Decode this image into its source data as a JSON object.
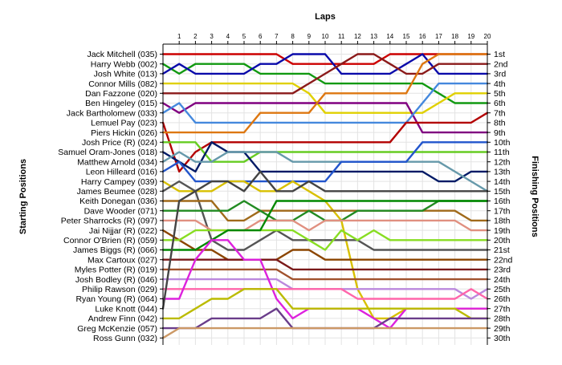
{
  "chart_data": {
    "type": "line",
    "x_title": "Laps",
    "y_left_title": "Starting Positions",
    "y_right_title": "Finishing Positions",
    "laps": [
      1,
      2,
      3,
      4,
      5,
      6,
      7,
      8,
      9,
      10,
      11,
      12,
      13,
      14,
      15,
      16,
      17,
      18,
      19,
      20
    ],
    "xlim": [
      0,
      20
    ],
    "grid": true,
    "starting_order": [
      "Jack Mitchell (035)",
      "Harry Webb (002)",
      "Josh White (013)",
      "Connor Mills (082)",
      "Dan Fazzone (020)",
      "Ben Hingeley (015)",
      "Jack Bartholomew (033)",
      "Lemuel Pay (023)",
      "Piers Hickin (026)",
      "Josh Price (R) (024)",
      "Samuel Oram-Jones (018)",
      "Matthew Arnold (034)",
      "Leon Hilleard (016)",
      "Harry Campey (039)",
      "James Beumee (028)",
      "Keith Donegan (036)",
      "Dave Wooder (071)",
      "Peter Sharrocks (R) (097)",
      "Jai Nijjar (R) (022)",
      "Connor O'Brien (R) (059)",
      "James Biggs (R) (066)",
      "Max Cartoux (027)",
      "Myles Potter (R) (019)",
      "Josh Bodley (R) (046)",
      "Philip Rawson (029)",
      "Ryan Young (R) (064)",
      "Luke Knott (044)",
      "Andrew Finn (042)",
      "Greg McKenzie (057)",
      "Ross Gunn (032)"
    ],
    "finishing_positions": [
      "1st",
      "2nd",
      "3rd",
      "4th",
      "5th",
      "6th",
      "7th",
      "8th",
      "9th",
      "10th",
      "11th",
      "12th",
      "13th",
      "14th",
      "15th",
      "16th",
      "17th",
      "18th",
      "19th",
      "20th",
      "21st",
      "22nd",
      "23rd",
      "24th",
      "25th",
      "26th",
      "27th",
      "28th",
      "29th",
      "30th"
    ],
    "series": [
      {
        "color": "#cc0000",
        "positions": [
          1,
          1,
          1,
          1,
          1,
          1,
          1,
          1,
          2,
          2,
          2,
          2,
          2,
          2,
          1,
          1,
          1,
          1,
          1,
          1,
          1
        ]
      },
      {
        "color": "#119911",
        "positions": [
          2,
          3,
          2,
          2,
          2,
          2,
          3,
          3,
          3,
          3,
          4,
          4,
          4,
          4,
          4,
          4,
          4,
          5,
          6,
          6,
          6
        ]
      },
      {
        "color": "#0a0aaa",
        "positions": [
          3,
          2,
          3,
          3,
          3,
          3,
          2,
          2,
          1,
          1,
          1,
          3,
          3,
          3,
          3,
          2,
          1,
          3,
          3,
          3,
          3
        ]
      },
      {
        "color": "#e0d000",
        "positions": [
          4,
          4,
          4,
          4,
          4,
          4,
          4,
          4,
          4,
          5,
          7,
          7,
          7,
          7,
          7,
          7,
          7,
          6,
          5,
          5,
          5
        ]
      },
      {
        "color": "#8b1a1a",
        "positions": [
          5,
          5,
          5,
          5,
          5,
          5,
          5,
          5,
          5,
          4,
          3,
          2,
          1,
          1,
          2,
          3,
          3,
          2,
          2,
          2,
          2
        ]
      },
      {
        "color": "#800080",
        "positions": [
          6,
          7,
          6,
          6,
          6,
          6,
          6,
          6,
          6,
          6,
          6,
          6,
          6,
          6,
          6,
          6,
          9,
          9,
          9,
          9,
          9
        ]
      },
      {
        "color": "#4488dd",
        "positions": [
          7,
          6,
          8,
          8,
          8,
          8,
          8,
          8,
          8,
          8,
          8,
          8,
          8,
          8,
          8,
          8,
          6,
          4,
          4,
          4,
          4
        ]
      },
      {
        "color": "#b30000",
        "positions": [
          8,
          13,
          11,
          10,
          10,
          10,
          10,
          10,
          10,
          10,
          10,
          10,
          10,
          10,
          10,
          8,
          8,
          8,
          8,
          8,
          7
        ]
      },
      {
        "color": "#dd7711",
        "positions": [
          9,
          9,
          9,
          9,
          9,
          9,
          7,
          7,
          7,
          7,
          5,
          5,
          5,
          5,
          5,
          5,
          2,
          1,
          1,
          1,
          1
        ]
      },
      {
        "color": "#66cc22",
        "positions": [
          10,
          10,
          10,
          12,
          12,
          12,
          11,
          11,
          11,
          11,
          11,
          11,
          11,
          11,
          11,
          11,
          11,
          11,
          11,
          11,
          11
        ]
      },
      {
        "color": "#001a66",
        "positions": [
          11,
          12,
          13,
          10,
          11,
          11,
          13,
          13,
          13,
          13,
          13,
          13,
          13,
          13,
          13,
          13,
          13,
          14,
          14,
          13,
          13
        ]
      },
      {
        "color": "#6699aa",
        "positions": [
          12,
          11,
          12,
          12,
          11,
          11,
          11,
          11,
          12,
          12,
          12,
          12,
          12,
          12,
          12,
          12,
          12,
          12,
          13,
          14,
          15
        ]
      },
      {
        "color": "#2255cc",
        "positions": [
          13,
          12,
          14,
          14,
          14,
          14,
          14,
          14,
          14,
          14,
          14,
          12,
          12,
          12,
          12,
          12,
          10,
          10,
          10,
          10,
          10
        ]
      },
      {
        "color": "#d8c000",
        "positions": [
          14,
          15,
          15,
          15,
          14,
          14,
          15,
          15,
          14,
          15,
          16,
          18,
          25,
          28,
          28,
          27,
          27,
          27,
          27,
          27,
          27
        ]
      },
      {
        "color": "#555555",
        "positions": [
          15,
          14,
          15,
          20,
          21,
          21,
          20,
          19,
          20,
          20,
          20,
          20,
          20,
          21,
          21,
          21,
          21,
          21,
          21,
          21,
          21
        ]
      },
      {
        "color": "#a06a1a",
        "positions": [
          16,
          16,
          16,
          16,
          18,
          18,
          17,
          17,
          17,
          17,
          17,
          17,
          17,
          17,
          17,
          17,
          17,
          17,
          17,
          18,
          18
        ]
      },
      {
        "color": "#228b22",
        "positions": [
          17,
          17,
          17,
          17,
          17,
          16,
          17,
          18,
          18,
          17,
          18,
          18,
          17,
          17,
          17,
          17,
          17,
          16,
          16,
          16,
          16
        ]
      },
      {
        "color": "#e09080",
        "positions": [
          18,
          18,
          18,
          19,
          19,
          19,
          18,
          18,
          18,
          19,
          18,
          18,
          18,
          18,
          18,
          18,
          18,
          18,
          18,
          19,
          19
        ]
      },
      {
        "color": "#8b4500",
        "positions": [
          19,
          20,
          21,
          21,
          22,
          22,
          22,
          22,
          21,
          21,
          22,
          22,
          22,
          22,
          22,
          22,
          22,
          22,
          22,
          22,
          22
        ]
      },
      {
        "color": "#88dd22",
        "positions": [
          20,
          20,
          19,
          19,
          19,
          19,
          19,
          19,
          19,
          20,
          21,
          19,
          20,
          19,
          20,
          20,
          20,
          20,
          20,
          20,
          20
        ]
      },
      {
        "color": "#008800",
        "positions": [
          21,
          21,
          21,
          20,
          19,
          19,
          19,
          16,
          16,
          16,
          16,
          16,
          16,
          16,
          16,
          16,
          16,
          16,
          16,
          16,
          16
        ]
      },
      {
        "color": "#7a1a1a",
        "positions": [
          22,
          22,
          22,
          22,
          22,
          22,
          22,
          22,
          23,
          23,
          23,
          23,
          23,
          23,
          23,
          23,
          23,
          23,
          23,
          23,
          23
        ]
      },
      {
        "color": "#a0522d",
        "positions": [
          23,
          23,
          23,
          23,
          23,
          23,
          23,
          23,
          24,
          24,
          24,
          24,
          24,
          24,
          24,
          24,
          24,
          24,
          24,
          24,
          24
        ]
      },
      {
        "color": "#bb88dd",
        "positions": [
          24,
          24,
          24,
          24,
          24,
          24,
          24,
          24,
          25,
          25,
          25,
          25,
          25,
          25,
          25,
          25,
          25,
          25,
          25,
          26,
          25
        ]
      },
      {
        "color": "#ff66aa",
        "positions": [
          25,
          25,
          25,
          25,
          25,
          25,
          25,
          25,
          25,
          25,
          25,
          25,
          26,
          26,
          26,
          26,
          26,
          26,
          26,
          25,
          26
        ]
      },
      {
        "color": "#dd22dd",
        "positions": [
          26,
          26,
          22,
          20,
          20,
          22,
          22,
          26,
          28,
          27,
          27,
          27,
          27,
          28,
          29,
          27,
          27,
          27,
          27,
          27,
          27
        ]
      },
      {
        "color": "#444444",
        "positions": [
          27,
          16,
          15,
          14,
          14,
          15,
          13,
          15,
          15,
          14,
          15,
          15,
          15,
          15,
          15,
          15,
          15,
          15,
          15,
          15,
          15
        ]
      },
      {
        "color": "#bbbb00",
        "positions": [
          28,
          28,
          27,
          26,
          26,
          25,
          25,
          25,
          27,
          27,
          27,
          27,
          27,
          27,
          27,
          27,
          27,
          27,
          27,
          28,
          28
        ]
      },
      {
        "color": "#6a3d8a",
        "positions": [
          29,
          29,
          29,
          28,
          28,
          28,
          28,
          27,
          29,
          29,
          29,
          29,
          29,
          29,
          28,
          28,
          28,
          28,
          28,
          28,
          28
        ]
      },
      {
        "color": "#cc9966",
        "positions": [
          30,
          29,
          29,
          29,
          29,
          29,
          29,
          29,
          29,
          29,
          29,
          29,
          29,
          29,
          29,
          29,
          29,
          29,
          29,
          29,
          29
        ]
      }
    ]
  }
}
